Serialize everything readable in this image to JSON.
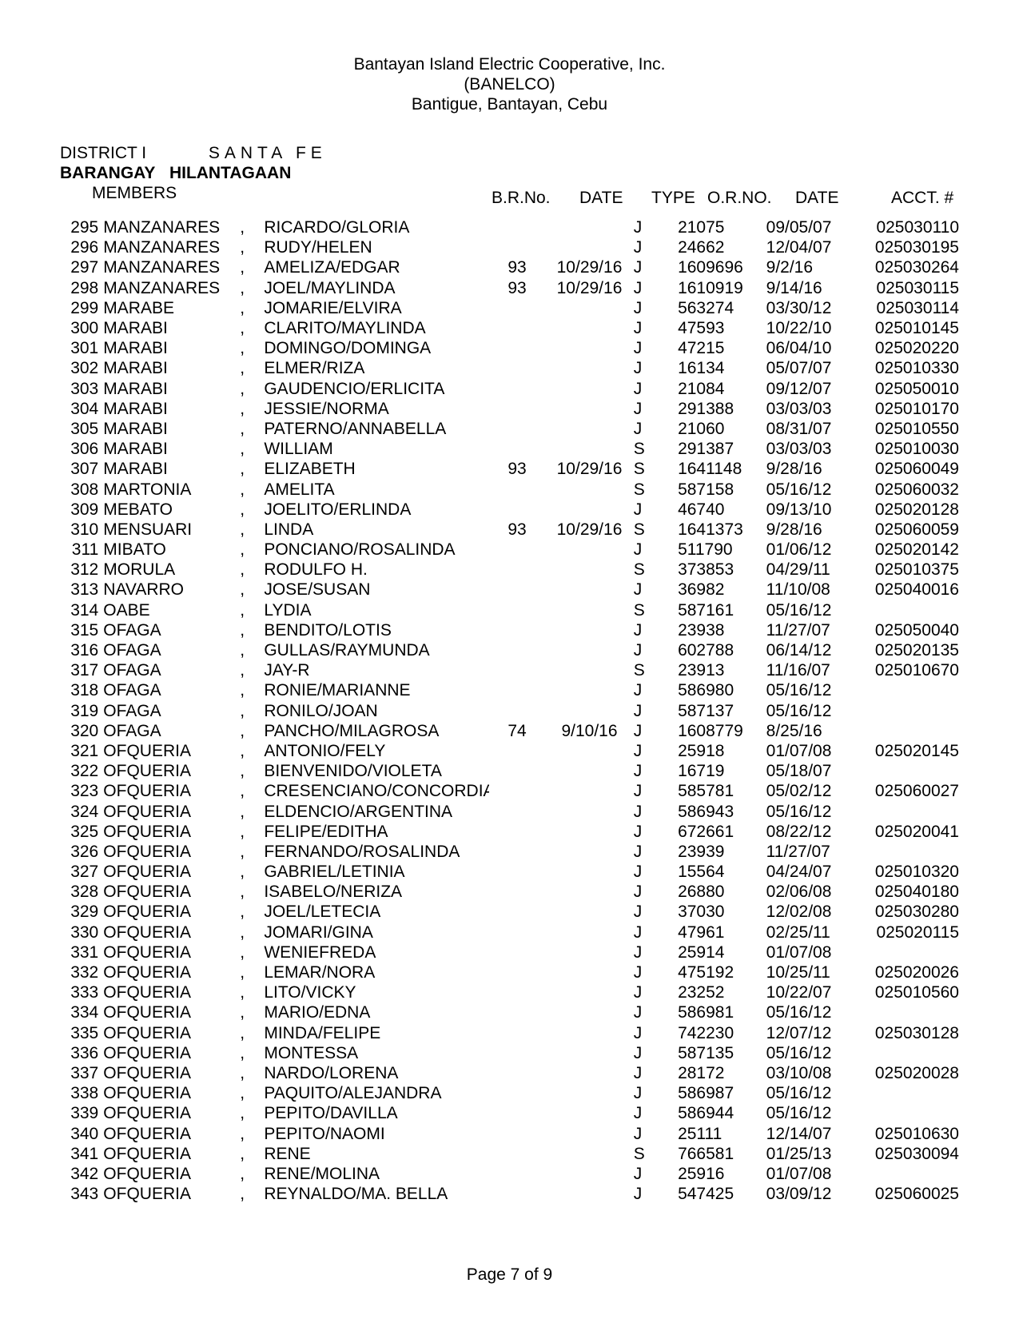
{
  "header": {
    "line1": "Bantayan Island Electric Cooperative, Inc.",
    "line2": "(BANELCO)",
    "line3": "Bantigue, Bantayan, Cebu"
  },
  "meta": {
    "district_label": "DISTRICT I",
    "district_value": "SANTA FE",
    "barangay_label": "BARANGAY",
    "barangay_value": "HILANTAGAAN",
    "members_label": "MEMBERS"
  },
  "columns": {
    "brno": "B.R.No.",
    "date1": "DATE",
    "type": "TYPE",
    "orno": "O.R.NO.",
    "date2": "DATE",
    "acct": "ACCT. #"
  },
  "rows": [
    {
      "n": "295",
      "last": "MANZANARES",
      "first": "RICARDO/GLORIA",
      "brno": "",
      "d1": "",
      "t": "J",
      "or": "21075",
      "d2": "09/05/07",
      "ac": "025030110"
    },
    {
      "n": "296",
      "last": "MANZANARES",
      "first": "RUDY/HELEN",
      "brno": "",
      "d1": "",
      "t": "J",
      "or": "24662",
      "d2": "12/04/07",
      "ac": "025030195"
    },
    {
      "n": "297",
      "last": "MANZANARES",
      "first": "AMELIZA/EDGAR",
      "brno": "93",
      "d1": "10/29/16",
      "t": "J",
      "or": "1609696",
      "d2": "9/2/16",
      "ac": "025030264"
    },
    {
      "n": "298",
      "last": "MANZANARES",
      "first": "JOEL/MAYLINDA",
      "brno": "93",
      "d1": "10/29/16",
      "t": "J",
      "or": "1610919",
      "d2": "9/14/16",
      "ac": "025030115"
    },
    {
      "n": "299",
      "last": "MARABE",
      "first": "JOMARIE/ELVIRA",
      "brno": "",
      "d1": "",
      "t": "J",
      "or": "563274",
      "d2": "03/30/12",
      "ac": "025030114"
    },
    {
      "n": "300",
      "last": "MARABI",
      "first": "CLARITO/MAYLINDA",
      "brno": "",
      "d1": "",
      "t": "J",
      "or": "47593",
      "d2": "10/22/10",
      "ac": "025010145"
    },
    {
      "n": "301",
      "last": "MARABI",
      "first": "DOMINGO/DOMINGA",
      "brno": "",
      "d1": "",
      "t": "J",
      "or": "47215",
      "d2": "06/04/10",
      "ac": "025020220"
    },
    {
      "n": "302",
      "last": "MARABI",
      "first": "ELMER/RIZA",
      "brno": "",
      "d1": "",
      "t": "J",
      "or": "16134",
      "d2": "05/07/07",
      "ac": "025010330"
    },
    {
      "n": "303",
      "last": "MARABI",
      "first": "GAUDENCIO/ERLICITA",
      "brno": "",
      "d1": "",
      "t": "J",
      "or": "21084",
      "d2": "09/12/07",
      "ac": "025050010"
    },
    {
      "n": "304",
      "last": "MARABI",
      "first": "JESSIE/NORMA",
      "brno": "",
      "d1": "",
      "t": "J",
      "or": "291388",
      "d2": "03/03/03",
      "ac": "025010170"
    },
    {
      "n": "305",
      "last": "MARABI",
      "first": "PATERNO/ANNABELLA",
      "brno": "",
      "d1": "",
      "t": "J",
      "or": "21060",
      "d2": "08/31/07",
      "ac": "025010550"
    },
    {
      "n": "306",
      "last": "MARABI",
      "first": "WILLIAM",
      "brno": "",
      "d1": "",
      "t": "S",
      "or": "291387",
      "d2": "03/03/03",
      "ac": "025010030"
    },
    {
      "n": "307",
      "last": "MARABI",
      "first": "ELIZABETH",
      "brno": "93",
      "d1": "10/29/16",
      "t": "S",
      "or": "1641148",
      "d2": "9/28/16",
      "ac": "025060049"
    },
    {
      "n": "308",
      "last": "MARTONIA",
      "first": "AMELITA",
      "brno": "",
      "d1": "",
      "t": "S",
      "or": "587158",
      "d2": "05/16/12",
      "ac": "025060032"
    },
    {
      "n": "309",
      "last": "MEBATO",
      "first": "JOELITO/ERLINDA",
      "brno": "",
      "d1": "",
      "t": "J",
      "or": "46740",
      "d2": "09/13/10",
      "ac": "025020128"
    },
    {
      "n": "310",
      "last": "MENSUARI",
      "first": "LINDA",
      "brno": "93",
      "d1": "10/29/16",
      "t": "S",
      "or": "1641373",
      "d2": "9/28/16",
      "ac": "025060059"
    },
    {
      "n": "311",
      "last": "MIBATO",
      "first": "PONCIANO/ROSALINDA",
      "brno": "",
      "d1": "",
      "t": "J",
      "or": "511790",
      "d2": "01/06/12",
      "ac": "025020142"
    },
    {
      "n": "312",
      "last": "MORULA",
      "first": "RODULFO H.",
      "brno": "",
      "d1": "",
      "t": "S",
      "or": "373853",
      "d2": "04/29/11",
      "ac": "025010375"
    },
    {
      "n": "313",
      "last": "NAVARRO",
      "first": "JOSE/SUSAN",
      "brno": "",
      "d1": "",
      "t": "J",
      "or": "36982",
      "d2": "11/10/08",
      "ac": "025040016"
    },
    {
      "n": "314",
      "last": "OABE",
      "first": "LYDIA",
      "brno": "",
      "d1": "",
      "t": "S",
      "or": "587161",
      "d2": "05/16/12",
      "ac": ""
    },
    {
      "n": "315",
      "last": "OFAGA",
      "first": "BENDITO/LOTIS",
      "brno": "",
      "d1": "",
      "t": "J",
      "or": "23938",
      "d2": "11/27/07",
      "ac": "025050040"
    },
    {
      "n": "316",
      "last": "OFAGA",
      "first": "GULLAS/RAYMUNDA",
      "brno": "",
      "d1": "",
      "t": "J",
      "or": "602788",
      "d2": "06/14/12",
      "ac": "025020135"
    },
    {
      "n": "317",
      "last": "OFAGA",
      "first": "JAY-R",
      "brno": "",
      "d1": "",
      "t": "S",
      "or": "23913",
      "d2": "11/16/07",
      "ac": "025010670"
    },
    {
      "n": "318",
      "last": "OFAGA",
      "first": "RONIE/MARIANNE",
      "brno": "",
      "d1": "",
      "t": "J",
      "or": "586980",
      "d2": "05/16/12",
      "ac": ""
    },
    {
      "n": "319",
      "last": "OFAGA",
      "first": "RONILO/JOAN",
      "brno": "",
      "d1": "",
      "t": "J",
      "or": "587137",
      "d2": "05/16/12",
      "ac": ""
    },
    {
      "n": "320",
      "last": "OFAGA",
      "first": "PANCHO/MILAGROSA",
      "brno": "74",
      "d1": "9/10/16",
      "t": "J",
      "or": "1608779",
      "d2": "8/25/16",
      "ac": ""
    },
    {
      "n": "321",
      "last": "OFQUERIA",
      "first": "ANTONIO/FELY",
      "brno": "",
      "d1": "",
      "t": "J",
      "or": "25918",
      "d2": "01/07/08",
      "ac": "025020145"
    },
    {
      "n": "322",
      "last": "OFQUERIA",
      "first": "BIENVENIDO/VIOLETA",
      "brno": "",
      "d1": "",
      "t": "J",
      "or": "16719",
      "d2": "05/18/07",
      "ac": ""
    },
    {
      "n": "323",
      "last": "OFQUERIA",
      "first": "CRESENCIANO/CONCORDIA",
      "brno": "",
      "d1": "",
      "t": "J",
      "or": "585781",
      "d2": "05/02/12",
      "ac": "025060027"
    },
    {
      "n": "324",
      "last": "OFQUERIA",
      "first": "ELDENCIO/ARGENTINA",
      "brno": "",
      "d1": "",
      "t": "J",
      "or": "586943",
      "d2": "05/16/12",
      "ac": ""
    },
    {
      "n": "325",
      "last": "OFQUERIA",
      "first": "FELIPE/EDITHA",
      "brno": "",
      "d1": "",
      "t": "J",
      "or": "672661",
      "d2": "08/22/12",
      "ac": "025020041"
    },
    {
      "n": "326",
      "last": "OFQUERIA",
      "first": "FERNANDO/ROSALINDA",
      "brno": "",
      "d1": "",
      "t": "J",
      "or": "23939",
      "d2": "11/27/07",
      "ac": ""
    },
    {
      "n": "327",
      "last": "OFQUERIA",
      "first": "GABRIEL/LETINIA",
      "brno": "",
      "d1": "",
      "t": "J",
      "or": "15564",
      "d2": "04/24/07",
      "ac": "025010320"
    },
    {
      "n": "328",
      "last": "OFQUERIA",
      "first": "ISABELO/NERIZA",
      "brno": "",
      "d1": "",
      "t": "J",
      "or": "26880",
      "d2": "02/06/08",
      "ac": "025040180"
    },
    {
      "n": "329",
      "last": "OFQUERIA",
      "first": "JOEL/LETECIA",
      "brno": "",
      "d1": "",
      "t": "J",
      "or": "37030",
      "d2": "12/02/08",
      "ac": "025030280"
    },
    {
      "n": "330",
      "last": "OFQUERIA",
      "first": "JOMARI/GINA",
      "brno": "",
      "d1": "",
      "t": "J",
      "or": "47961",
      "d2": "02/25/11",
      "ac": "025020115"
    },
    {
      "n": "331",
      "last": "OFQUERIA",
      "first": "WENIEFREDA",
      "brno": "",
      "d1": "",
      "t": "J",
      "or": "25914",
      "d2": "01/07/08",
      "ac": ""
    },
    {
      "n": "332",
      "last": "OFQUERIA",
      "first": "LEMAR/NORA",
      "brno": "",
      "d1": "",
      "t": "J",
      "or": "475192",
      "d2": "10/25/11",
      "ac": "025020026"
    },
    {
      "n": "333",
      "last": "OFQUERIA",
      "first": "LITO/VICKY",
      "brno": "",
      "d1": "",
      "t": "J",
      "or": "23252",
      "d2": "10/22/07",
      "ac": "025010560"
    },
    {
      "n": "334",
      "last": "OFQUERIA",
      "first": "MARIO/EDNA",
      "brno": "",
      "d1": "",
      "t": "J",
      "or": "586981",
      "d2": "05/16/12",
      "ac": ""
    },
    {
      "n": "335",
      "last": "OFQUERIA",
      "first": "MINDA/FELIPE",
      "brno": "",
      "d1": "",
      "t": "J",
      "or": "742230",
      "d2": "12/07/12",
      "ac": "025030128"
    },
    {
      "n": "336",
      "last": "OFQUERIA",
      "first": "MONTESSA",
      "brno": "",
      "d1": "",
      "t": "J",
      "or": "587135",
      "d2": "05/16/12",
      "ac": ""
    },
    {
      "n": "337",
      "last": "OFQUERIA",
      "first": "NARDO/LORENA",
      "brno": "",
      "d1": "",
      "t": "J",
      "or": "28172",
      "d2": "03/10/08",
      "ac": "025020028"
    },
    {
      "n": "338",
      "last": "OFQUERIA",
      "first": "PAQUITO/ALEJANDRA",
      "brno": "",
      "d1": "",
      "t": "J",
      "or": "586987",
      "d2": "05/16/12",
      "ac": ""
    },
    {
      "n": "339",
      "last": "OFQUERIA",
      "first": "PEPITO/DAVILLA",
      "brno": "",
      "d1": "",
      "t": "J",
      "or": "586944",
      "d2": "05/16/12",
      "ac": ""
    },
    {
      "n": "340",
      "last": "OFQUERIA",
      "first": "PEPITO/NAOMI",
      "brno": "",
      "d1": "",
      "t": "J",
      "or": "25111",
      "d2": "12/14/07",
      "ac": "025010630"
    },
    {
      "n": "341",
      "last": "OFQUERIA",
      "first": "RENE",
      "brno": "",
      "d1": "",
      "t": "S",
      "or": "766581",
      "d2": "01/25/13",
      "ac": "025030094"
    },
    {
      "n": "342",
      "last": "OFQUERIA",
      "first": "RENE/MOLINA",
      "brno": "",
      "d1": "",
      "t": "J",
      "or": "25916",
      "d2": "01/07/08",
      "ac": ""
    },
    {
      "n": "343",
      "last": "OFQUERIA",
      "first": "REYNALDO/MA. BELLA",
      "brno": "",
      "d1": "",
      "t": "J",
      "or": "547425",
      "d2": "03/09/12",
      "ac": "025060025"
    }
  ],
  "footer": "Page 7 of 9"
}
